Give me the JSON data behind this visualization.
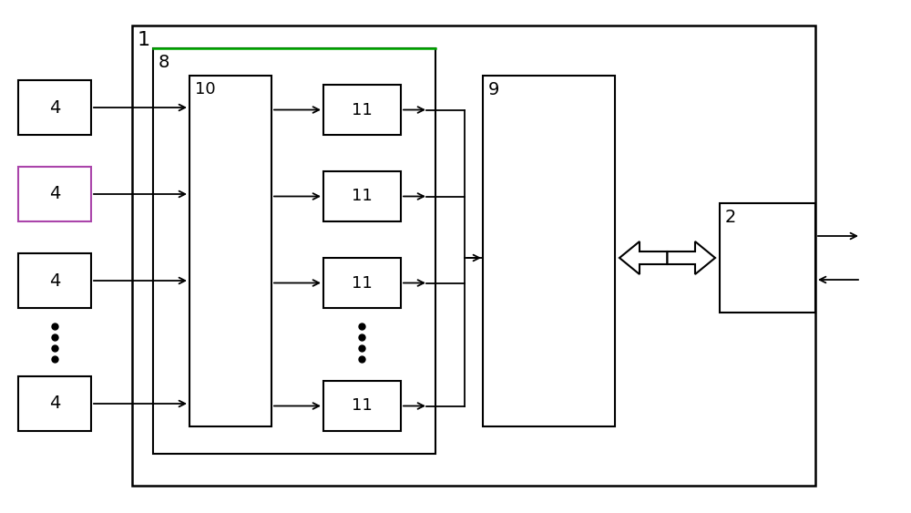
{
  "bg_color": "#ffffff",
  "figsize": [
    10.0,
    5.63
  ],
  "dpi": 100,
  "box1_label": "1",
  "box8_label": "8",
  "box10_label": "10",
  "box9_label": "9",
  "box2_label": "2",
  "box4_labels": [
    "4",
    "4",
    "4",
    "4"
  ],
  "box11_labels": [
    "11",
    "11",
    "11",
    "11"
  ],
  "green_color": "#00aa00",
  "black_color": "#000000",
  "gray_color": "#888888",
  "purple_color": "#aa00aa"
}
